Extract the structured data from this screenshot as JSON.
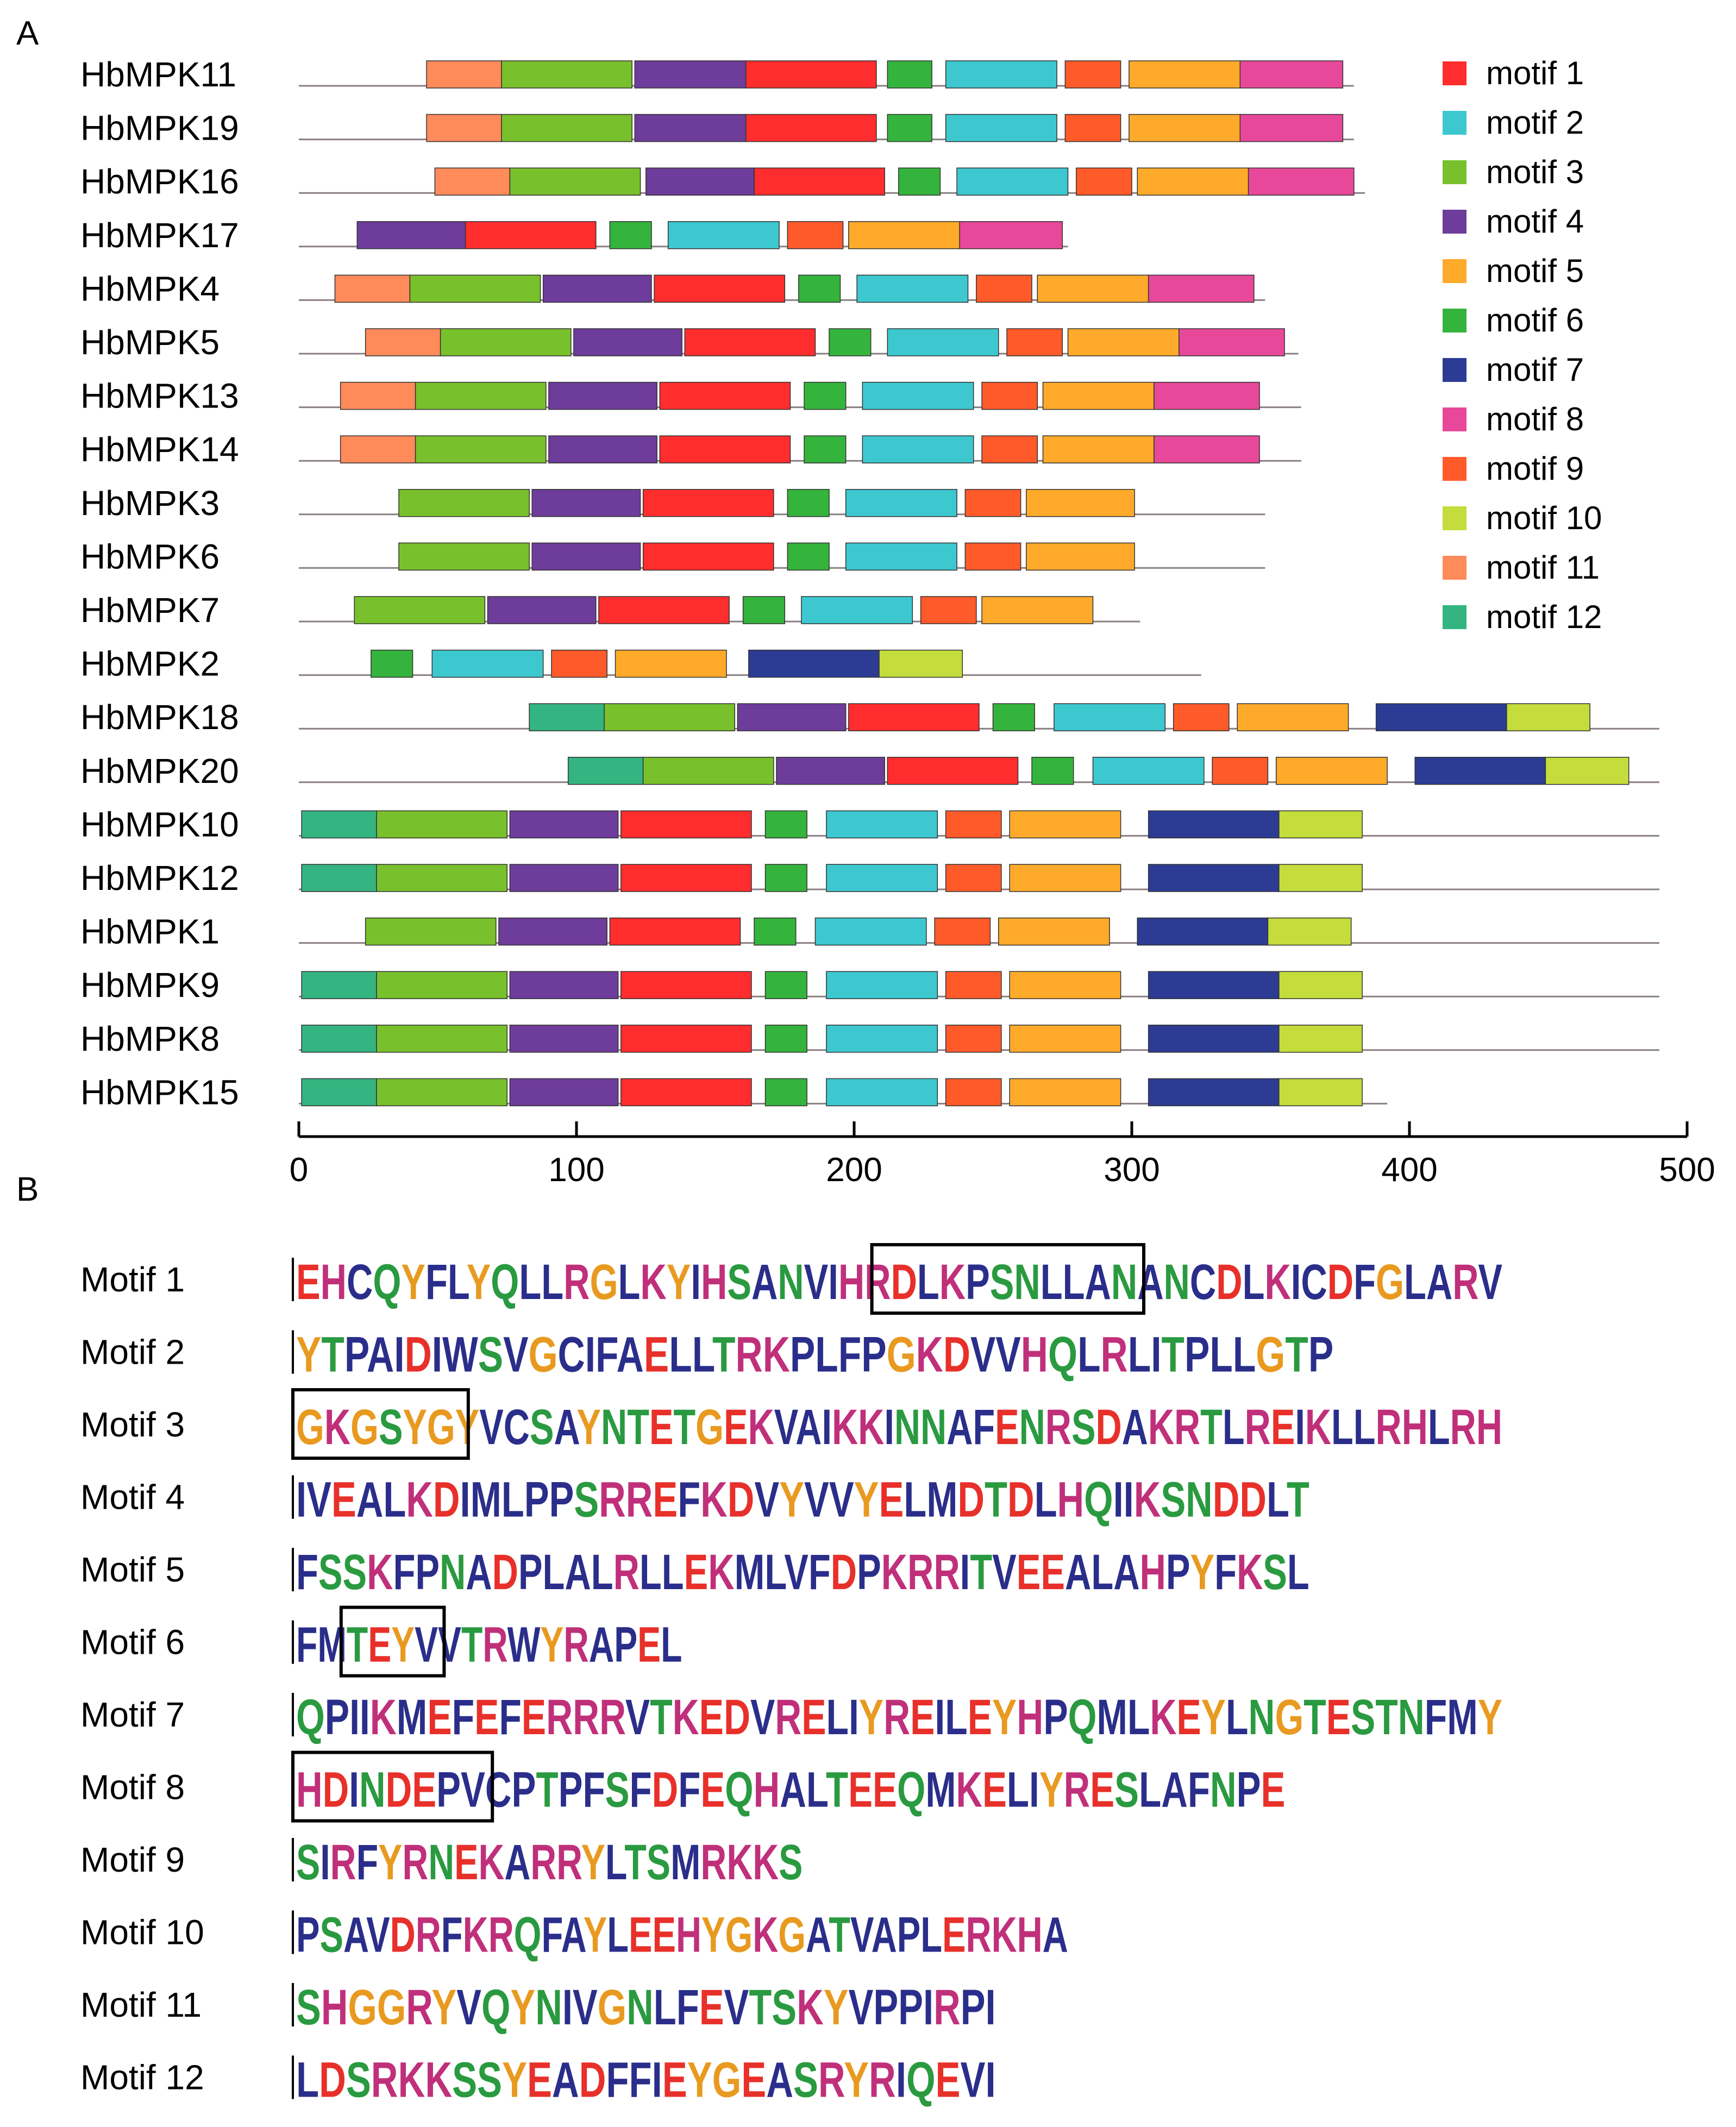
{
  "panel_a_label": "A",
  "panel_b_label": "B",
  "chart_data": {
    "type": "motif-architecture",
    "x_axis": {
      "min": 0,
      "max": 500,
      "ticks": [
        0,
        100,
        200,
        300,
        400,
        500
      ]
    },
    "motif_colors": {
      "1": "#ff2d2d",
      "2": "#3dc8d0",
      "3": "#78c02c",
      "4": "#6e3c9a",
      "5": "#ffaa2a",
      "6": "#34b43c",
      "7": "#2c3c94",
      "8": "#e8489a",
      "9": "#ff5a2a",
      "10": "#c4dc3c",
      "11": "#ff8a5a",
      "12": "#34b480"
    },
    "legend": [
      {
        "motif": 1,
        "label": "motif 1"
      },
      {
        "motif": 2,
        "label": "motif 2"
      },
      {
        "motif": 3,
        "label": "motif 3"
      },
      {
        "motif": 4,
        "label": "motif 4"
      },
      {
        "motif": 5,
        "label": "motif 5"
      },
      {
        "motif": 6,
        "label": "motif 6"
      },
      {
        "motif": 7,
        "label": "motif 7"
      },
      {
        "motif": 8,
        "label": "motif 8"
      },
      {
        "motif": 9,
        "label": "motif 9"
      },
      {
        "motif": 10,
        "label": "motif 10"
      },
      {
        "motif": 11,
        "label": "motif 11"
      },
      {
        "motif": 12,
        "label": "motif 12"
      }
    ],
    "proteins": [
      {
        "name": "HbMPK11",
        "length": 380,
        "motifs": [
          [
            11,
            46,
            73
          ],
          [
            3,
            73,
            120
          ],
          [
            4,
            121,
            161
          ],
          [
            1,
            161,
            208
          ],
          [
            6,
            212,
            228
          ],
          [
            2,
            233,
            273
          ],
          [
            9,
            276,
            296
          ],
          [
            5,
            299,
            339
          ],
          [
            8,
            339,
            376
          ]
        ]
      },
      {
        "name": "HbMPK19",
        "length": 380,
        "motifs": [
          [
            11,
            46,
            73
          ],
          [
            3,
            73,
            120
          ],
          [
            4,
            121,
            161
          ],
          [
            1,
            161,
            208
          ],
          [
            6,
            212,
            228
          ],
          [
            2,
            233,
            273
          ],
          [
            9,
            276,
            296
          ],
          [
            5,
            299,
            339
          ],
          [
            8,
            339,
            376
          ]
        ]
      },
      {
        "name": "HbMPK16",
        "length": 384,
        "motifs": [
          [
            11,
            49,
            76
          ],
          [
            3,
            76,
            123
          ],
          [
            4,
            125,
            164
          ],
          [
            1,
            164,
            211
          ],
          [
            6,
            216,
            231
          ],
          [
            2,
            237,
            277
          ],
          [
            9,
            280,
            300
          ],
          [
            5,
            302,
            342
          ],
          [
            8,
            342,
            380
          ]
        ]
      },
      {
        "name": "HbMPK17",
        "length": 277,
        "motifs": [
          [
            4,
            21,
            60
          ],
          [
            1,
            60,
            107
          ],
          [
            6,
            112,
            127
          ],
          [
            2,
            133,
            173
          ],
          [
            9,
            176,
            196
          ],
          [
            5,
            198,
            238
          ],
          [
            8,
            238,
            275
          ]
        ]
      },
      {
        "name": "HbMPK4",
        "length": 348,
        "motifs": [
          [
            11,
            13,
            40
          ],
          [
            3,
            40,
            87
          ],
          [
            4,
            88,
            127
          ],
          [
            1,
            128,
            175
          ],
          [
            6,
            180,
            195
          ],
          [
            2,
            201,
            241
          ],
          [
            9,
            244,
            264
          ],
          [
            5,
            266,
            306
          ],
          [
            8,
            306,
            344
          ]
        ]
      },
      {
        "name": "HbMPK5",
        "length": 360,
        "motifs": [
          [
            11,
            24,
            51
          ],
          [
            3,
            51,
            98
          ],
          [
            4,
            99,
            138
          ],
          [
            1,
            139,
            186
          ],
          [
            6,
            191,
            206
          ],
          [
            2,
            212,
            252
          ],
          [
            9,
            255,
            275
          ],
          [
            5,
            277,
            317
          ],
          [
            8,
            317,
            355
          ]
        ]
      },
      {
        "name": "HbMPK13",
        "length": 361,
        "motifs": [
          [
            11,
            15,
            42
          ],
          [
            3,
            42,
            89
          ],
          [
            4,
            90,
            129
          ],
          [
            1,
            130,
            177
          ],
          [
            6,
            182,
            197
          ],
          [
            2,
            203,
            243
          ],
          [
            9,
            246,
            266
          ],
          [
            5,
            268,
            308
          ],
          [
            8,
            308,
            346
          ]
        ]
      },
      {
        "name": "HbMPK14",
        "length": 361,
        "motifs": [
          [
            11,
            15,
            42
          ],
          [
            3,
            42,
            89
          ],
          [
            4,
            90,
            129
          ],
          [
            1,
            130,
            177
          ],
          [
            6,
            182,
            197
          ],
          [
            2,
            203,
            243
          ],
          [
            9,
            246,
            266
          ],
          [
            5,
            268,
            308
          ],
          [
            8,
            308,
            346
          ]
        ]
      },
      {
        "name": "HbMPK3",
        "length": 348,
        "motifs": [
          [
            3,
            36,
            83
          ],
          [
            4,
            84,
            123
          ],
          [
            1,
            124,
            171
          ],
          [
            6,
            176,
            191
          ],
          [
            2,
            197,
            237
          ],
          [
            9,
            240,
            260
          ],
          [
            5,
            262,
            301
          ]
        ]
      },
      {
        "name": "HbMPK6",
        "length": 348,
        "motifs": [
          [
            3,
            36,
            83
          ],
          [
            4,
            84,
            123
          ],
          [
            1,
            124,
            171
          ],
          [
            6,
            176,
            191
          ],
          [
            2,
            197,
            237
          ],
          [
            9,
            240,
            260
          ],
          [
            5,
            262,
            301
          ]
        ]
      },
      {
        "name": "HbMPK7",
        "length": 303,
        "motifs": [
          [
            3,
            20,
            67
          ],
          [
            4,
            68,
            107
          ],
          [
            1,
            108,
            155
          ],
          [
            6,
            160,
            175
          ],
          [
            2,
            181,
            221
          ],
          [
            9,
            224,
            244
          ],
          [
            5,
            246,
            286
          ]
        ]
      },
      {
        "name": "HbMPK2",
        "length": 325,
        "motifs": [
          [
            6,
            26,
            41
          ],
          [
            2,
            48,
            88
          ],
          [
            9,
            91,
            111
          ],
          [
            5,
            114,
            154
          ],
          [
            7,
            162,
            209
          ],
          [
            10,
            209,
            239
          ]
        ]
      },
      {
        "name": "HbMPK18",
        "length": 490,
        "motifs": [
          [
            12,
            83,
            110
          ],
          [
            3,
            110,
            157
          ],
          [
            4,
            158,
            197
          ],
          [
            1,
            198,
            245
          ],
          [
            6,
            250,
            265
          ],
          [
            2,
            272,
            312
          ],
          [
            9,
            315,
            335
          ],
          [
            5,
            338,
            378
          ],
          [
            7,
            388,
            435
          ],
          [
            10,
            435,
            465
          ]
        ]
      },
      {
        "name": "HbMPK20",
        "length": 490,
        "motifs": [
          [
            12,
            97,
            124
          ],
          [
            3,
            124,
            171
          ],
          [
            4,
            172,
            211
          ],
          [
            1,
            212,
            259
          ],
          [
            6,
            264,
            279
          ],
          [
            2,
            286,
            326
          ],
          [
            9,
            329,
            349
          ],
          [
            5,
            352,
            392
          ],
          [
            7,
            402,
            449
          ],
          [
            10,
            449,
            479
          ]
        ]
      },
      {
        "name": "HbMPK10",
        "length": 490,
        "motifs": [
          [
            12,
            1,
            28
          ],
          [
            3,
            28,
            75
          ],
          [
            4,
            76,
            115
          ],
          [
            1,
            116,
            163
          ],
          [
            6,
            168,
            183
          ],
          [
            2,
            190,
            230
          ],
          [
            9,
            233,
            253
          ],
          [
            5,
            256,
            296
          ],
          [
            7,
            306,
            353
          ],
          [
            10,
            353,
            383
          ]
        ]
      },
      {
        "name": "HbMPK12",
        "length": 490,
        "motifs": [
          [
            12,
            1,
            28
          ],
          [
            3,
            28,
            75
          ],
          [
            4,
            76,
            115
          ],
          [
            1,
            116,
            163
          ],
          [
            6,
            168,
            183
          ],
          [
            2,
            190,
            230
          ],
          [
            9,
            233,
            253
          ],
          [
            5,
            256,
            296
          ],
          [
            7,
            306,
            353
          ],
          [
            10,
            353,
            383
          ]
        ]
      },
      {
        "name": "HbMPK1",
        "length": 490,
        "motifs": [
          [
            3,
            24,
            71
          ],
          [
            4,
            72,
            111
          ],
          [
            1,
            112,
            159
          ],
          [
            6,
            164,
            179
          ],
          [
            2,
            186,
            226
          ],
          [
            9,
            229,
            249
          ],
          [
            5,
            252,
            292
          ],
          [
            7,
            302,
            349
          ],
          [
            10,
            349,
            379
          ]
        ]
      },
      {
        "name": "HbMPK9",
        "length": 490,
        "motifs": [
          [
            12,
            1,
            28
          ],
          [
            3,
            28,
            75
          ],
          [
            4,
            76,
            115
          ],
          [
            1,
            116,
            163
          ],
          [
            6,
            168,
            183
          ],
          [
            2,
            190,
            230
          ],
          [
            9,
            233,
            253
          ],
          [
            5,
            256,
            296
          ],
          [
            7,
            306,
            353
          ],
          [
            10,
            353,
            383
          ]
        ]
      },
      {
        "name": "HbMPK8",
        "length": 490,
        "motifs": [
          [
            12,
            1,
            28
          ],
          [
            3,
            28,
            75
          ],
          [
            4,
            76,
            115
          ],
          [
            1,
            116,
            163
          ],
          [
            6,
            168,
            183
          ],
          [
            2,
            190,
            230
          ],
          [
            9,
            233,
            253
          ],
          [
            5,
            256,
            296
          ],
          [
            7,
            306,
            353
          ],
          [
            10,
            353,
            383
          ]
        ]
      },
      {
        "name": "HbMPK15",
        "length": 392,
        "motifs": [
          [
            12,
            1,
            28
          ],
          [
            3,
            28,
            75
          ],
          [
            4,
            76,
            115
          ],
          [
            1,
            116,
            163
          ],
          [
            6,
            168,
            183
          ],
          [
            2,
            190,
            230
          ],
          [
            9,
            233,
            253
          ],
          [
            5,
            256,
            296
          ],
          [
            7,
            306,
            353
          ],
          [
            10,
            353,
            383
          ]
        ]
      }
    ],
    "sequence_logos": [
      {
        "label": "Motif 1",
        "sequence": "EHCQYFLYQLLRGLKYIHSANVIHRDLKPSNLLANANCDLKICDFGLARV",
        "boxed": [
          24,
          34
        ]
      },
      {
        "label": "Motif 2",
        "sequence": "YTPAIDIWSVGCIFAELLTRKPLFPGKDVVHQLRLITPLLGTP",
        "boxed": null
      },
      {
        "label": "Motif 3",
        "sequence": "GKGSYGYVCSAYNTETGEKVAIKKINNAFENRSDAKRTLREIKLLRHLRH",
        "boxed": [
          0,
          6
        ]
      },
      {
        "label": "Motif 4",
        "sequence": "IVEALKDIMLPPSRREFKDVYVVYELMDTDLHQIIKSNDDLT",
        "boxed": null
      },
      {
        "label": "Motif 5",
        "sequence": "FSSKFPNADPLALRLLEKMLVFDPKRRITVEEALAHPYFKSL",
        "boxed": null
      },
      {
        "label": "Motif 6",
        "sequence": "FMTEYVVTRWYRAPEL",
        "boxed": [
          2,
          5
        ]
      },
      {
        "label": "Motif 7",
        "sequence": "QPIIKMEFEFERRRVTKEDVRELIYREILEYHPQMLKEYLNGTESTNFMY",
        "boxed": null
      },
      {
        "label": "Motif 8",
        "sequence": "HDINDEPVCPTPFSFDFEQHALTEEQMKELIYRESLAFNPE",
        "boxed": [
          0,
          7
        ]
      },
      {
        "label": "Motif 9",
        "sequence": "SIRFYRNEKARRYLTSMRKKS",
        "boxed": null
      },
      {
        "label": "Motif 10",
        "sequence": "PSAVDRFKRQFAYLEEHYGKGATVAPLERKHA",
        "boxed": null
      },
      {
        "label": "Motif 11",
        "sequence": "SHGGRYVQYNIVGNLFEVTSKYVPPIRPI",
        "boxed": null
      },
      {
        "label": "Motif 12",
        "sequence": "LDSRKKSSYEADFFIEYGEASRYRIQEVI",
        "boxed": null
      }
    ]
  }
}
